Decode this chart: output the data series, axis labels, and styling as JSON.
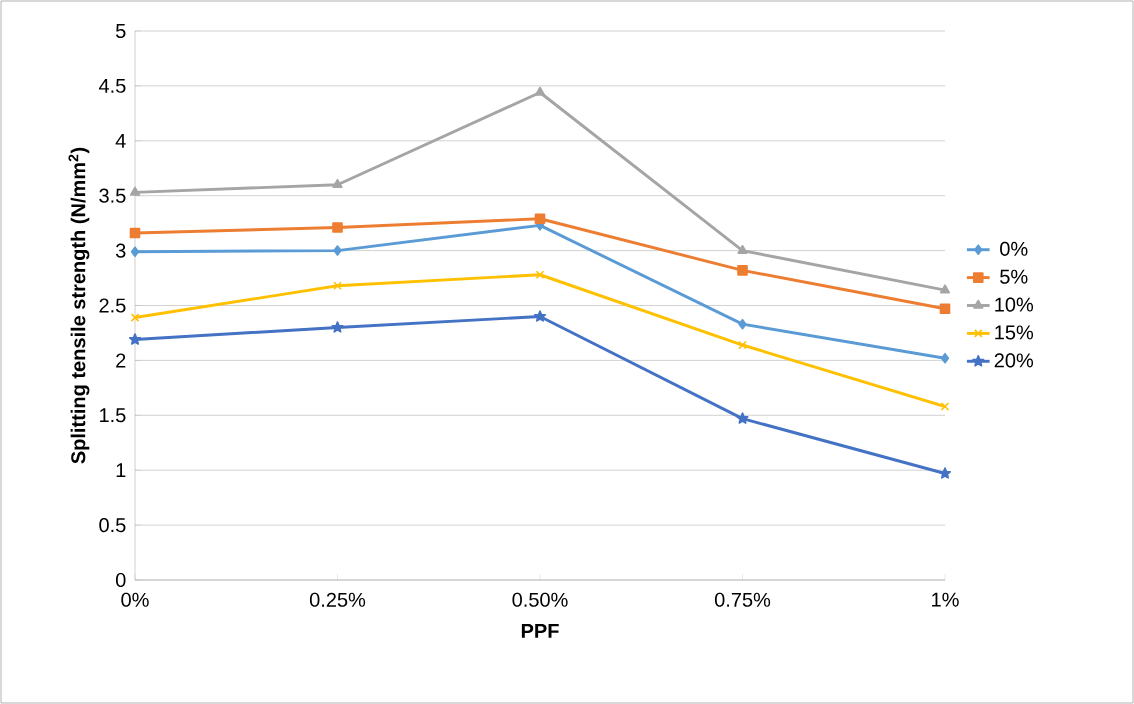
{
  "chart_data": {
    "type": "line",
    "xlabel": "PPF",
    "ylabel": "Splitting tensile strength (N/mm$^{2}$)",
    "categories": [
      "0%",
      "0.25%",
      "0.50%",
      "0.75%",
      "1%"
    ],
    "ylim": [
      0,
      5
    ],
    "yticks": [
      0,
      0.5,
      1,
      1.5,
      2,
      2.5,
      3,
      3.5,
      4,
      4.5,
      5
    ],
    "grid": "y",
    "legend": "right",
    "line_style": "solid",
    "series": [
      {
        "name": "0%",
        "color": "#5b9bd5",
        "marker": "diamond",
        "values": [
          2.99,
          3.0,
          3.23,
          2.33,
          2.02
        ]
      },
      {
        "name": "5%",
        "color": "#ed7d31",
        "marker": "square",
        "values": [
          3.16,
          3.21,
          3.29,
          2.82,
          2.47
        ]
      },
      {
        "name": "10%",
        "color": "#a5a5a5",
        "marker": "triangle",
        "values": [
          3.53,
          3.6,
          4.44,
          3.0,
          2.64
        ]
      },
      {
        "name": "15%",
        "color": "#ffc000",
        "marker": "cross",
        "values": [
          2.39,
          2.68,
          2.78,
          2.14,
          1.58
        ]
      },
      {
        "name": "20%",
        "color": "#4472c4",
        "marker": "star",
        "values": [
          2.19,
          2.3,
          2.4,
          1.47,
          0.97
        ]
      }
    ]
  }
}
